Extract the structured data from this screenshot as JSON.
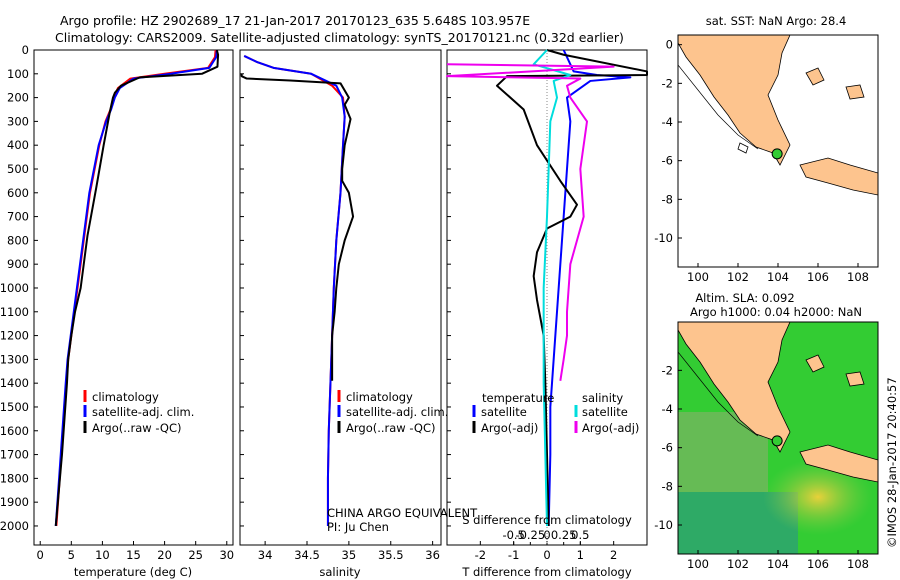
{
  "header": {
    "line1": "Argo profile: HZ 2902689_17 21-Jan-2017 20170123_635 5.648S 103.957E",
    "line2": "Climatology: CARS2009. Satellite-adjusted climatology: synTS_20170121.nc (0.32d earlier)"
  },
  "colors": {
    "climatology": "#ff0000",
    "satellite": "#0000ff",
    "argo": "#000000",
    "satellite_salinity": "#00dddd",
    "argo_salinity": "#ee00ee",
    "land": "#fdc48e",
    "sla_field": "#33cc33"
  },
  "chart_data": [
    {
      "type": "line",
      "xlabel": "temperature (deg C)",
      "ylabel": "",
      "xlim": [
        -1,
        31
      ],
      "ylim": [
        0,
        2080
      ],
      "xticks": [
        0,
        5,
        10,
        15,
        20,
        25,
        30
      ],
      "yticks": [
        0,
        100,
        200,
        300,
        400,
        500,
        600,
        700,
        800,
        900,
        1000,
        1100,
        1200,
        1300,
        1400,
        1500,
        1600,
        1700,
        1800,
        1900,
        2000
      ],
      "legend": [
        "climatology",
        "satellite-adj. clim.",
        "Argo(..raw -QC)"
      ],
      "legend_position": "lower-center",
      "series": [
        {
          "name": "climatology",
          "color": "#ff0000",
          "x": [
            28.2,
            28.1,
            27.0,
            20.0,
            14.5,
            12.5,
            11.8,
            11.3,
            10.5,
            9.5,
            8.0,
            7.0,
            6.0,
            5.5,
            5.0,
            4.5,
            4.2,
            3.8,
            3.4,
            3.0,
            2.6
          ],
          "y": [
            0,
            30,
            75,
            100,
            120,
            160,
            200,
            250,
            300,
            400,
            600,
            800,
            1000,
            1100,
            1200,
            1300,
            1400,
            1550,
            1700,
            1850,
            2000
          ]
        },
        {
          "name": "satellite-adj. clim.",
          "color": "#0000ff",
          "x": [
            28.4,
            28.3,
            27.2,
            21.0,
            15.0,
            12.8,
            12.0,
            11.4,
            10.6,
            9.4,
            7.9,
            6.9,
            5.9,
            5.4,
            4.9,
            4.4,
            4.1,
            3.7,
            3.3,
            2.9,
            2.5
          ],
          "y": [
            0,
            30,
            75,
            100,
            120,
            160,
            200,
            250,
            300,
            400,
            600,
            800,
            1000,
            1100,
            1200,
            1300,
            1400,
            1550,
            1700,
            1850,
            2000
          ]
        },
        {
          "name": "Argo(..raw -QC)",
          "color": "#000000",
          "x": [
            28.4,
            28.6,
            28.5,
            26.0,
            16.0,
            13.0,
            12.0,
            11.7,
            11.2,
            10.2,
            9.0,
            7.6,
            6.5,
            5.6,
            5.0,
            4.5,
            4.3,
            3.9,
            3.5,
            3.0,
            2.5
          ],
          "y": [
            0,
            20,
            70,
            100,
            115,
            150,
            180,
            200,
            260,
            400,
            580,
            780,
            1000,
            1100,
            1200,
            1300,
            1400,
            1550,
            1700,
            1850,
            2000
          ]
        }
      ]
    },
    {
      "type": "line",
      "xlabel": "salinity",
      "xlim": [
        33.7,
        36.1
      ],
      "ylim": [
        0,
        2080
      ],
      "xticks": [
        34,
        34.5,
        35,
        35.5,
        36
      ],
      "legend": [
        "climatology",
        "satellite-adj. clim.",
        "Argo(..raw -QC)"
      ],
      "legend_position": "lower-right",
      "annotations": [
        "CHINA ARGO EQUIVALENT",
        "PI: Ju Chen"
      ],
      "series": [
        {
          "name": "climatology",
          "color": "#ff0000",
          "x": [
            33.75,
            33.9,
            34.1,
            34.55,
            34.8,
            34.93,
            34.95,
            34.93,
            34.9,
            34.85,
            34.82,
            34.8,
            34.78,
            34.76,
            34.75,
            34.75
          ],
          "y": [
            25,
            50,
            75,
            100,
            150,
            200,
            280,
            400,
            600,
            800,
            1000,
            1200,
            1400,
            1600,
            1800,
            2000
          ]
        },
        {
          "name": "satellite-adj. clim.",
          "color": "#0000ff",
          "x": [
            33.75,
            33.9,
            34.1,
            34.55,
            34.85,
            34.92,
            34.95,
            34.93,
            34.9,
            34.85,
            34.82,
            34.8,
            34.78,
            34.76,
            34.75,
            34.75
          ],
          "y": [
            25,
            50,
            75,
            100,
            150,
            200,
            280,
            400,
            600,
            800,
            1000,
            1200,
            1400,
            1600,
            1800,
            2000
          ]
        },
        {
          "name": "Argo(..raw -QC)",
          "color": "#000000",
          "x": [
            33.72,
            33.72,
            33.78,
            34.3,
            34.9,
            35.0,
            34.95,
            35.02,
            34.95,
            34.92,
            34.92,
            35.0,
            35.05,
            34.95,
            34.88,
            34.85,
            34.83,
            34.8,
            34.8
          ],
          "y": [
            100,
            110,
            120,
            128,
            140,
            200,
            230,
            290,
            400,
            500,
            550,
            600,
            700,
            800,
            900,
            1000,
            1100,
            1200,
            1390
          ]
        }
      ]
    },
    {
      "type": "line",
      "xlabel": "T difference from climatology",
      "xlabel_secondary": "S difference from climatology",
      "xlim": [
        -3,
        3
      ],
      "ylim": [
        0,
        2080
      ],
      "xticks": [
        -2,
        -1,
        0,
        1,
        2
      ],
      "xticks_secondary": [
        "-0.5",
        "-0.25",
        "0",
        "0.25",
        "0.5"
      ],
      "legend_groups": [
        {
          "title": "temperature",
          "items": [
            "satellite",
            "Argo(-adj)"
          ]
        },
        {
          "title": "salinity",
          "items": [
            "satellite",
            "Argo(-adj)"
          ]
        }
      ],
      "legend_position": "lower-center",
      "series": [
        {
          "name": "temperature satellite",
          "color": "#0000ff",
          "x": [
            0.5,
            0.7,
            0.8,
            1.5,
            2.5,
            1.3,
            0.6,
            0.7,
            0.6,
            0.5,
            0.4,
            0.3,
            0.2,
            0.1,
            0.1,
            0.05
          ],
          "y": [
            0,
            60,
            90,
            105,
            115,
            130,
            200,
            300,
            500,
            700,
            900,
            1100,
            1300,
            1500,
            1700,
            2000
          ]
        },
        {
          "name": "temperature Argo(-adj)",
          "color": "#000000",
          "x": [
            0.0,
            0.5,
            3.0,
            3.0,
            -1.2,
            -1.5,
            -0.7,
            -0.3,
            0.4,
            0.9,
            0.7,
            0.0,
            -0.3,
            -0.4,
            -0.3,
            -0.1,
            -0.05,
            0.0,
            0.05
          ],
          "y": [
            0,
            20,
            90,
            105,
            110,
            150,
            250,
            400,
            550,
            650,
            700,
            750,
            850,
            950,
            1050,
            1200,
            1400,
            1700,
            2000
          ]
        },
        {
          "name": "salinity satellite",
          "color": "#00dddd",
          "x": [
            0.0,
            -0.4,
            0.7,
            0.2,
            0.3,
            0.1,
            0.05,
            0.0,
            -0.1,
            -0.1,
            -0.05,
            0.0
          ],
          "y": [
            0,
            60,
            105,
            130,
            200,
            300,
            500,
            700,
            1000,
            1400,
            1700,
            2000
          ]
        },
        {
          "name": "salinity Argo(-adj)",
          "color": "#ee00ee",
          "x": [
            -3.0,
            2.0,
            -3.0,
            1.0,
            0.6,
            0.7,
            1.2,
            1.0,
            1.1,
            0.7,
            0.6,
            0.6,
            0.5,
            0.4
          ],
          "y": [
            60,
            70,
            110,
            120,
            150,
            200,
            300,
            500,
            700,
            900,
            1100,
            1200,
            1300,
            1390
          ]
        }
      ]
    },
    {
      "type": "map",
      "title": "sat. SST: NaN Argo: 28.4",
      "xlim": [
        99,
        109
      ],
      "ylim": [
        -11.5,
        0.5
      ],
      "xticks": [
        100,
        102,
        104,
        106,
        108
      ],
      "yticks": [
        0,
        -2,
        -4,
        -6,
        -8,
        -10
      ],
      "marker": {
        "lon": 103.957,
        "lat": -5.648
      }
    },
    {
      "type": "map",
      "title": "Altim. SLA: 0.092",
      "subtitle": "Argo h1000: 0.04 h2000: NaN",
      "xlim": [
        99,
        109
      ],
      "ylim": [
        -11.5,
        0.5
      ],
      "xticks": [
        100,
        102,
        104,
        106,
        108
      ],
      "yticks": [
        -2,
        -4,
        -6,
        -8,
        -10
      ],
      "marker": {
        "lon": 103.957,
        "lat": -5.648
      }
    }
  ],
  "legend_text": {
    "climatology": "climatology",
    "satellite_adj": "satellite-adj. clim.",
    "argo_raw": "Argo(..raw -QC)",
    "temperature": "temperature",
    "salinity": "salinity",
    "satellite": "satellite",
    "argo_adj": "Argo(-adj)"
  },
  "footer": {
    "stamp": "©IMOS 28-Jan-2017 20:40:57"
  }
}
